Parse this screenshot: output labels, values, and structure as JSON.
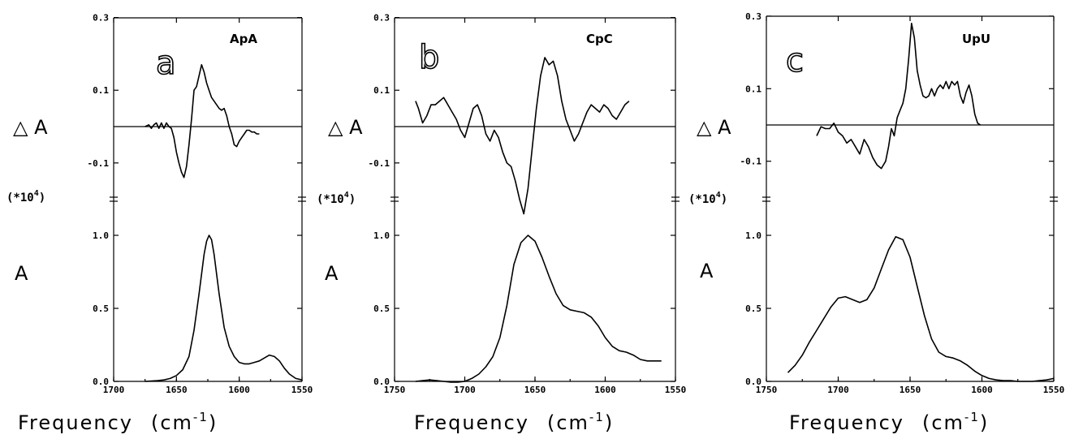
{
  "figure": {
    "xlabel": "Frequency",
    "xunit": "(cm",
    "xunit_exp": "-1",
    "xunit_close": ")",
    "delta_label": "△ A",
    "abs_label": "A",
    "scale_label": "(*10",
    "scale_exp": "4",
    "scale_close": ")",
    "colors": {
      "line": "#000000",
      "background": "#ffffff"
    }
  },
  "chart_data": [
    {
      "type": "line",
      "panel": "a",
      "sample": "ApA",
      "xlim": [
        1700,
        1550
      ],
      "xticks": [
        "1700",
        "1650",
        "1600",
        "1550"
      ],
      "diff_ylim": [
        -0.2,
        0.3
      ],
      "diff_yticks": [
        "0.3",
        "0.1",
        "-0.1"
      ],
      "abs_ylim": [
        0,
        1.0
      ],
      "abs_yticks": [
        "1.0",
        "0.5",
        "0.0"
      ],
      "series": [
        {
          "role": "difference",
          "x": [
            1675,
            1672,
            1670,
            1668,
            1666,
            1664,
            1662,
            1660,
            1658,
            1656,
            1654,
            1652,
            1650,
            1648,
            1646,
            1644,
            1642,
            1640,
            1638,
            1636,
            1634,
            1632,
            1630,
            1628,
            1626,
            1624,
            1622,
            1620,
            1618,
            1616,
            1614,
            1612,
            1610,
            1608,
            1606,
            1604,
            1602,
            1600,
            1598,
            1596,
            1594,
            1592,
            1590,
            1588,
            1586,
            1584
          ],
          "y": [
            0.0,
            0.005,
            -0.005,
            0.005,
            0.01,
            -0.005,
            0.01,
            -0.005,
            0.01,
            0.0,
            -0.005,
            -0.03,
            -0.07,
            -0.1,
            -0.125,
            -0.14,
            -0.11,
            -0.05,
            0.02,
            0.1,
            0.11,
            0.14,
            0.17,
            0.15,
            0.12,
            0.1,
            0.08,
            0.07,
            0.06,
            0.05,
            0.045,
            0.05,
            0.03,
            0.0,
            -0.02,
            -0.05,
            -0.055,
            -0.04,
            -0.03,
            -0.02,
            -0.01,
            -0.01,
            -0.015,
            -0.015,
            -0.02,
            -0.02
          ]
        },
        {
          "role": "absorbance",
          "x": [
            1675,
            1670,
            1665,
            1660,
            1655,
            1650,
            1645,
            1640,
            1636,
            1632,
            1628,
            1626,
            1624,
            1622,
            1620,
            1616,
            1612,
            1608,
            1604,
            1600,
            1596,
            1592,
            1588,
            1584,
            1580,
            1576,
            1572,
            1568,
            1564,
            1560,
            1555,
            1550
          ],
          "y": [
            0.0,
            0.002,
            0.005,
            0.01,
            0.02,
            0.04,
            0.08,
            0.17,
            0.35,
            0.6,
            0.87,
            0.96,
            1.0,
            0.97,
            0.87,
            0.6,
            0.37,
            0.24,
            0.17,
            0.13,
            0.12,
            0.12,
            0.13,
            0.14,
            0.16,
            0.18,
            0.17,
            0.14,
            0.09,
            0.05,
            0.02,
            0.01
          ]
        }
      ]
    },
    {
      "type": "line",
      "panel": "b",
      "sample": "CpC",
      "xlim": [
        1750,
        1550
      ],
      "xticks": [
        "1750",
        "1700",
        "1650",
        "1600",
        "1550"
      ],
      "diff_ylim": [
        -0.2,
        0.3
      ],
      "diff_yticks": [
        "0.3",
        "0.1",
        "-0.1"
      ],
      "abs_ylim": [
        0,
        1.0
      ],
      "abs_yticks": [
        "1.0",
        "0.5",
        "0.0"
      ],
      "series": [
        {
          "role": "difference",
          "x": [
            1735,
            1733,
            1730,
            1727,
            1724,
            1721,
            1718,
            1715,
            1712,
            1709,
            1706,
            1703,
            1700,
            1697,
            1694,
            1691,
            1688,
            1685,
            1682,
            1679,
            1676,
            1673,
            1670,
            1667,
            1664,
            1661,
            1658,
            1655,
            1652,
            1649,
            1646,
            1643,
            1640,
            1637,
            1634,
            1631,
            1628,
            1625,
            1622,
            1619,
            1616,
            1613,
            1610,
            1607,
            1604,
            1601,
            1598,
            1595,
            1592,
            1589,
            1586,
            1583
          ],
          "y": [
            0.07,
            0.05,
            0.01,
            0.03,
            0.06,
            0.06,
            0.07,
            0.08,
            0.06,
            0.04,
            0.02,
            -0.01,
            -0.03,
            0.01,
            0.05,
            0.06,
            0.03,
            -0.02,
            -0.04,
            -0.01,
            -0.03,
            -0.07,
            -0.1,
            -0.11,
            -0.15,
            -0.2,
            -0.24,
            -0.17,
            -0.06,
            0.05,
            0.14,
            0.19,
            0.17,
            0.18,
            0.14,
            0.07,
            0.02,
            -0.01,
            -0.04,
            -0.02,
            0.01,
            0.04,
            0.06,
            0.05,
            0.04,
            0.06,
            0.05,
            0.03,
            0.02,
            0.04,
            0.06,
            0.07
          ]
        },
        {
          "role": "absorbance",
          "x": [
            1735,
            1730,
            1725,
            1720,
            1715,
            1710,
            1705,
            1700,
            1695,
            1690,
            1685,
            1680,
            1675,
            1670,
            1665,
            1660,
            1655,
            1650,
            1645,
            1640,
            1635,
            1630,
            1625,
            1620,
            1615,
            1610,
            1605,
            1600,
            1595,
            1590,
            1585,
            1580,
            1575,
            1570,
            1565,
            1560
          ],
          "y": [
            0.0,
            0.005,
            0.01,
            0.005,
            0.0,
            -0.005,
            -0.005,
            0.0,
            0.02,
            0.05,
            0.1,
            0.17,
            0.3,
            0.52,
            0.8,
            0.95,
            1.0,
            0.96,
            0.85,
            0.72,
            0.6,
            0.52,
            0.49,
            0.48,
            0.47,
            0.44,
            0.38,
            0.3,
            0.24,
            0.21,
            0.2,
            0.18,
            0.15,
            0.14,
            0.14,
            0.14
          ]
        }
      ]
    },
    {
      "type": "line",
      "panel": "c",
      "sample": "UpU",
      "xlim": [
        1750,
        1550
      ],
      "xticks": [
        "1750",
        "1700",
        "1650",
        "1600",
        "1550"
      ],
      "diff_ylim": [
        -0.2,
        0.3
      ],
      "diff_yticks": [
        "0.3",
        "0.1",
        "-0.1"
      ],
      "abs_ylim": [
        0,
        1.0
      ],
      "abs_yticks": [
        "1.0",
        "0.5",
        "0.0"
      ],
      "series": [
        {
          "role": "difference",
          "x": [
            1715,
            1712,
            1709,
            1706,
            1703,
            1700,
            1697,
            1694,
            1691,
            1688,
            1685,
            1682,
            1679,
            1676,
            1673,
            1670,
            1667,
            1665,
            1663,
            1661,
            1659,
            1657,
            1655,
            1653,
            1651,
            1649,
            1647,
            1645,
            1643,
            1641,
            1639,
            1637,
            1635,
            1633,
            1631,
            1629,
            1627,
            1625,
            1623,
            1621,
            1619,
            1617,
            1615,
            1613,
            1611,
            1609,
            1607,
            1605,
            1603,
            1601
          ],
          "y": [
            -0.03,
            -0.005,
            -0.01,
            -0.01,
            0.005,
            -0.02,
            -0.03,
            -0.05,
            -0.04,
            -0.06,
            -0.08,
            -0.04,
            -0.06,
            -0.09,
            -0.11,
            -0.12,
            -0.1,
            -0.06,
            -0.01,
            -0.03,
            0.02,
            0.04,
            0.06,
            0.1,
            0.18,
            0.28,
            0.24,
            0.15,
            0.11,
            0.08,
            0.075,
            0.08,
            0.1,
            0.08,
            0.1,
            0.11,
            0.1,
            0.12,
            0.1,
            0.12,
            0.11,
            0.12,
            0.08,
            0.06,
            0.09,
            0.11,
            0.08,
            0.03,
            0.005,
            0.0
          ]
        },
        {
          "role": "absorbance",
          "x": [
            1735,
            1730,
            1725,
            1720,
            1715,
            1710,
            1705,
            1700,
            1695,
            1690,
            1685,
            1680,
            1675,
            1670,
            1665,
            1660,
            1655,
            1650,
            1645,
            1640,
            1635,
            1630,
            1625,
            1620,
            1615,
            1610,
            1605,
            1600,
            1595,
            1590,
            1585,
            1580,
            1575,
            1570,
            1565,
            1560,
            1555,
            1550
          ],
          "y": [
            0.06,
            0.11,
            0.18,
            0.27,
            0.35,
            0.43,
            0.51,
            0.57,
            0.58,
            0.56,
            0.54,
            0.56,
            0.64,
            0.77,
            0.9,
            0.99,
            0.97,
            0.85,
            0.65,
            0.45,
            0.29,
            0.2,
            0.17,
            0.16,
            0.14,
            0.11,
            0.07,
            0.04,
            0.02,
            0.01,
            0.005,
            0.005,
            0.0,
            0.0,
            0.0,
            0.005,
            0.01,
            0.02
          ]
        }
      ]
    }
  ]
}
